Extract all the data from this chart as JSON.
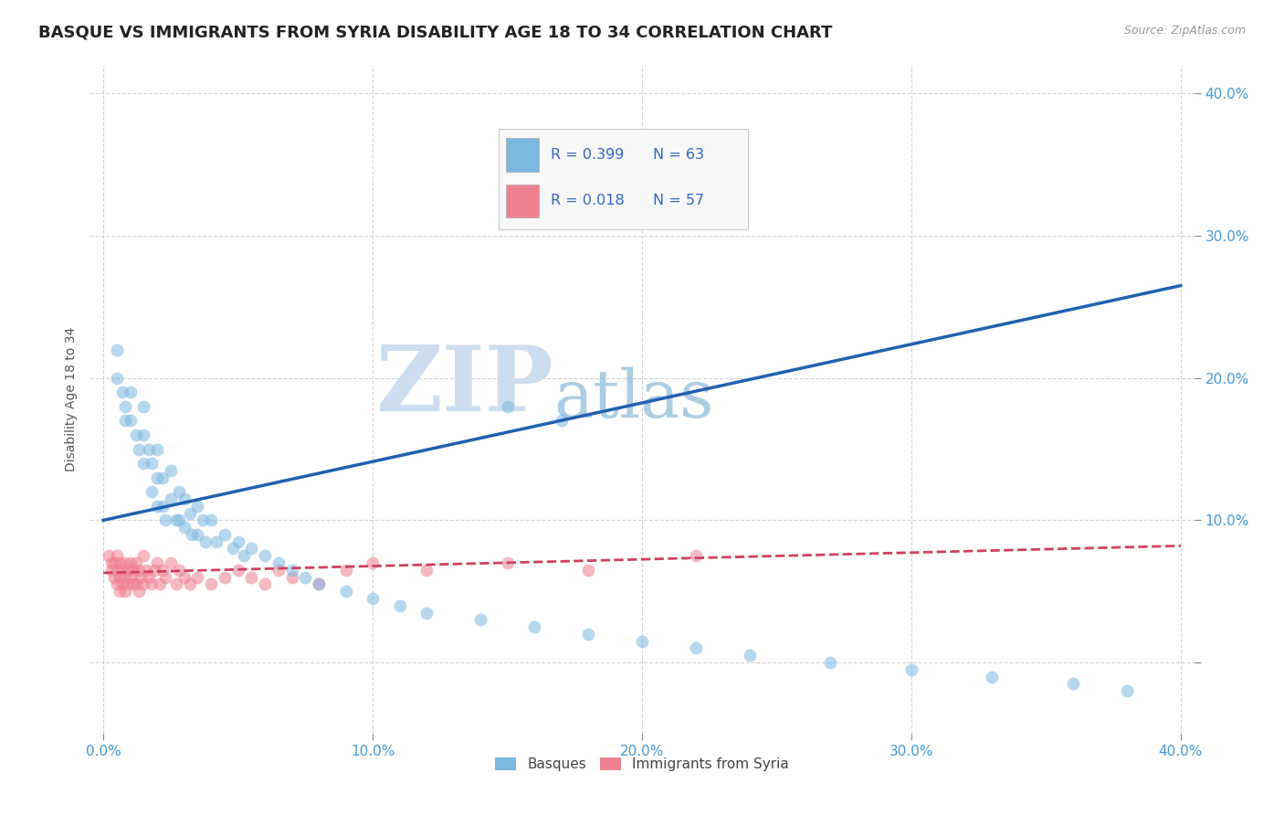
{
  "title": "BASQUE VS IMMIGRANTS FROM SYRIA DISABILITY AGE 18 TO 34 CORRELATION CHART",
  "source": "Source: ZipAtlas.com",
  "ylabel": "Disability Age 18 to 34",
  "xlim": [
    -0.005,
    0.405
  ],
  "ylim": [
    -0.05,
    0.42
  ],
  "xtick_vals": [
    0.0,
    0.1,
    0.2,
    0.3,
    0.4
  ],
  "xtick_labels": [
    "0.0%",
    "10.0%",
    "20.0%",
    "30.0%",
    "40.0%"
  ],
  "ytick_vals": [
    0.0,
    0.1,
    0.2,
    0.3,
    0.4
  ],
  "ytick_labels": [
    "",
    "10.0%",
    "20.0%",
    "30.0%",
    "40.0%"
  ],
  "legend_entries": [
    {
      "label": "Basques",
      "color": "#a8c8f0",
      "R": "0.399",
      "N": "63"
    },
    {
      "label": "Immigrants from Syria",
      "color": "#f0b0c0",
      "R": "0.018",
      "N": "57"
    }
  ],
  "watermark_zip": "ZIP",
  "watermark_atlas": "atlas",
  "blue_scatter_x": [
    0.005,
    0.005,
    0.007,
    0.008,
    0.008,
    0.01,
    0.01,
    0.012,
    0.013,
    0.015,
    0.015,
    0.015,
    0.017,
    0.018,
    0.018,
    0.02,
    0.02,
    0.02,
    0.022,
    0.022,
    0.023,
    0.025,
    0.025,
    0.027,
    0.028,
    0.028,
    0.03,
    0.03,
    0.032,
    0.033,
    0.035,
    0.035,
    0.037,
    0.038,
    0.04,
    0.042,
    0.045,
    0.048,
    0.05,
    0.052,
    0.055,
    0.06,
    0.065,
    0.07,
    0.075,
    0.08,
    0.09,
    0.1,
    0.11,
    0.12,
    0.14,
    0.16,
    0.18,
    0.2,
    0.22,
    0.24,
    0.27,
    0.3,
    0.33,
    0.36,
    0.38,
    0.15,
    0.17
  ],
  "blue_scatter_y": [
    0.22,
    0.2,
    0.19,
    0.18,
    0.17,
    0.19,
    0.17,
    0.16,
    0.15,
    0.18,
    0.16,
    0.14,
    0.15,
    0.14,
    0.12,
    0.15,
    0.13,
    0.11,
    0.13,
    0.11,
    0.1,
    0.135,
    0.115,
    0.1,
    0.12,
    0.1,
    0.115,
    0.095,
    0.105,
    0.09,
    0.11,
    0.09,
    0.1,
    0.085,
    0.1,
    0.085,
    0.09,
    0.08,
    0.085,
    0.075,
    0.08,
    0.075,
    0.07,
    0.065,
    0.06,
    0.055,
    0.05,
    0.045,
    0.04,
    0.035,
    0.03,
    0.025,
    0.02,
    0.015,
    0.01,
    0.005,
    0.0,
    -0.005,
    -0.01,
    -0.015,
    -0.02,
    0.18,
    0.17
  ],
  "pink_scatter_x": [
    0.002,
    0.003,
    0.003,
    0.004,
    0.004,
    0.005,
    0.005,
    0.005,
    0.006,
    0.006,
    0.006,
    0.007,
    0.007,
    0.008,
    0.008,
    0.008,
    0.009,
    0.009,
    0.01,
    0.01,
    0.011,
    0.011,
    0.012,
    0.012,
    0.013,
    0.013,
    0.014,
    0.015,
    0.015,
    0.016,
    0.017,
    0.018,
    0.019,
    0.02,
    0.021,
    0.022,
    0.023,
    0.025,
    0.027,
    0.028,
    0.03,
    0.032,
    0.035,
    0.04,
    0.045,
    0.05,
    0.055,
    0.06,
    0.065,
    0.07,
    0.08,
    0.09,
    0.1,
    0.12,
    0.15,
    0.18,
    0.22
  ],
  "pink_scatter_y": [
    0.075,
    0.07,
    0.065,
    0.07,
    0.06,
    0.075,
    0.065,
    0.055,
    0.07,
    0.06,
    0.05,
    0.065,
    0.055,
    0.07,
    0.06,
    0.05,
    0.065,
    0.055,
    0.07,
    0.06,
    0.065,
    0.055,
    0.07,
    0.055,
    0.065,
    0.05,
    0.06,
    0.075,
    0.055,
    0.065,
    0.06,
    0.055,
    0.065,
    0.07,
    0.055,
    0.065,
    0.06,
    0.07,
    0.055,
    0.065,
    0.06,
    0.055,
    0.06,
    0.055,
    0.06,
    0.065,
    0.06,
    0.055,
    0.065,
    0.06,
    0.055,
    0.065,
    0.07,
    0.065,
    0.07,
    0.065,
    0.075
  ],
  "blue_line_x": [
    0.0,
    0.4
  ],
  "blue_line_y": [
    0.1,
    0.265
  ],
  "pink_line_x": [
    0.0,
    0.4
  ],
  "pink_line_y": [
    0.063,
    0.082
  ],
  "scatter_alpha": 0.55,
  "scatter_size": 100,
  "blue_color": "#7ab8e0",
  "pink_color": "#f08090",
  "blue_line_color": "#2060b0",
  "pink_line_color": "#d04060",
  "grid_color": "#c8c8c8",
  "background_color": "#ffffff",
  "tick_color": "#4499dd",
  "title_fontsize": 13,
  "axis_label_fontsize": 10,
  "tick_fontsize": 11,
  "legend_fontsize": 12
}
